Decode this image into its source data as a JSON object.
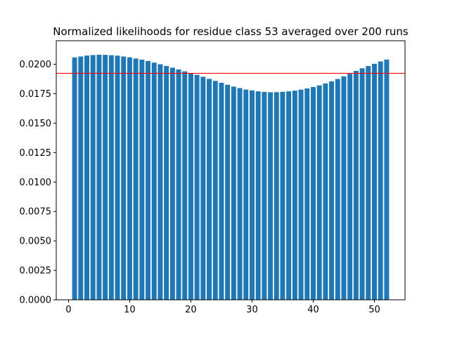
{
  "chart_data": {
    "type": "bar",
    "title": "Normalized likelihoods for residue class 53 averaged over 200 runs",
    "xlabel": "",
    "ylabel": "",
    "xlim": [
      -2,
      55
    ],
    "ylim": [
      0,
      0.022
    ],
    "x": [
      1,
      2,
      3,
      4,
      5,
      6,
      7,
      8,
      9,
      10,
      11,
      12,
      13,
      14,
      15,
      16,
      17,
      18,
      19,
      20,
      21,
      22,
      23,
      24,
      25,
      26,
      27,
      28,
      29,
      30,
      31,
      32,
      33,
      34,
      35,
      36,
      37,
      38,
      39,
      40,
      41,
      42,
      43,
      44,
      45,
      46,
      47,
      48,
      49,
      50,
      51,
      52
    ],
    "values": [
      0.02058,
      0.02066,
      0.02074,
      0.02078,
      0.02081,
      0.0208,
      0.02077,
      0.02073,
      0.02066,
      0.02059,
      0.02049,
      0.02039,
      0.02028,
      0.02014,
      0.02,
      0.01986,
      0.01971,
      0.01956,
      0.0194,
      0.01925,
      0.0191,
      0.01894,
      0.01876,
      0.01859,
      0.01843,
      0.01826,
      0.0181,
      0.01798,
      0.01785,
      0.01778,
      0.0177,
      0.01765,
      0.01762,
      0.01763,
      0.01766,
      0.0177,
      0.01776,
      0.01785,
      0.01795,
      0.01807,
      0.01821,
      0.01837,
      0.01855,
      0.01875,
      0.01897,
      0.01919,
      0.01944,
      0.01966,
      0.01985,
      0.02004,
      0.02024,
      0.0204
    ],
    "reference_line": 0.01923,
    "xticks": [
      0,
      10,
      20,
      30,
      40,
      50
    ],
    "yticks": [
      0.0,
      0.0025,
      0.005,
      0.0075,
      0.01,
      0.0125,
      0.015,
      0.0175,
      0.02
    ],
    "ytick_labels": [
      "0.0000",
      "0.0025",
      "0.0050",
      "0.0075",
      "0.0100",
      "0.0125",
      "0.0150",
      "0.0175",
      "0.0200"
    ],
    "xtick_labels": [
      "0",
      "10",
      "20",
      "30",
      "40",
      "50"
    ],
    "bar_color": "#1f77b4",
    "reference_color": "#ff0000",
    "grid": false,
    "legend": false
  }
}
